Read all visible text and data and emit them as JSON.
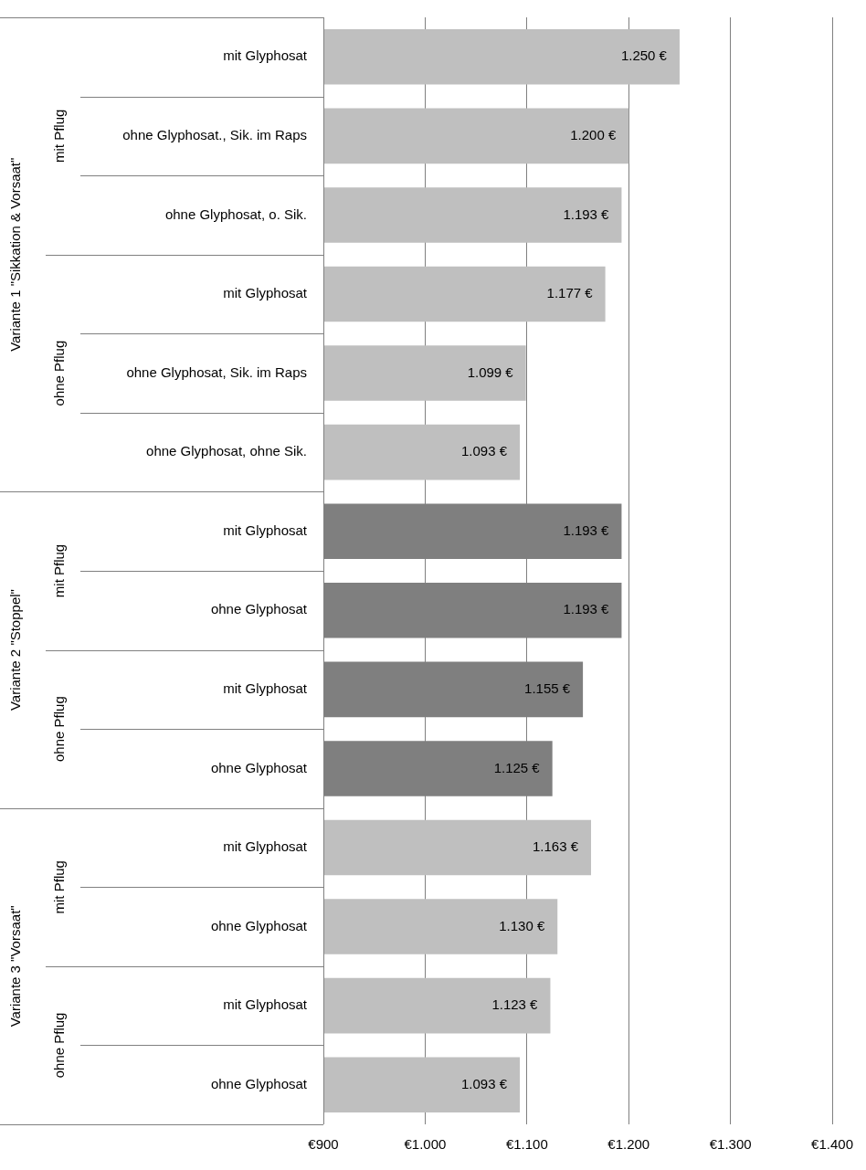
{
  "chart_data": {
    "type": "bar",
    "orientation": "horizontal",
    "categories": [
      "mit Glyphosat",
      "ohne Glyphosat., Sik. im Raps",
      "ohne Glyphosat, o. Sik.",
      "mit Glyphosat",
      "ohne Glyphosat, Sik. im Raps",
      "ohne Glyphosat, ohne Sik.",
      "mit Glyphosat",
      "ohne Glyphosat",
      "mit Glyphosat",
      "ohne Glyphosat",
      "mit Glyphosat",
      "ohne Glyphosat",
      "mit Glyphosat",
      "ohne Glyphosat"
    ],
    "values": [
      1250,
      1200,
      1193,
      1177,
      1099,
      1093,
      1193,
      1193,
      1155,
      1125,
      1163,
      1130,
      1123,
      1093
    ],
    "value_labels": [
      "1.250 €",
      "1.200 €",
      "1.193 €",
      "1.177 €",
      "1.099 €",
      "1.093 €",
      "1.193 €",
      "1.193 €",
      "1.155 €",
      "1.125 €",
      "1.163 €",
      "1.130 €",
      "1.123 €",
      "1.093 €"
    ],
    "colors": [
      "#bfbfbf",
      "#bfbfbf",
      "#bfbfbf",
      "#bfbfbf",
      "#bfbfbf",
      "#bfbfbf",
      "#7f7f7f",
      "#7f7f7f",
      "#7f7f7f",
      "#7f7f7f",
      "#bfbfbf",
      "#bfbfbf",
      "#bfbfbf",
      "#bfbfbf"
    ],
    "xlim": [
      900,
      1400
    ],
    "xticks": [
      {
        "value": 900,
        "label": "€900"
      },
      {
        "value": 1000,
        "label": "€1.000"
      },
      {
        "value": 1100,
        "label": "€1.100"
      },
      {
        "value": 1200,
        "label": "€1.200"
      },
      {
        "value": 1300,
        "label": "€1.300"
      },
      {
        "value": 1400,
        "label": "€1.400"
      }
    ],
    "grid": "x",
    "legend": false,
    "annotations": [
      "Variante 1 \"Sikkation & Vorsaat\"",
      "mit Pflug",
      "ohne Pflug",
      "Variante 2 \"Stoppel\"",
      "mit Pflug",
      "ohne Pflug",
      "Variante 3 \"Vorsaat\"",
      "mit Pflug",
      "ohne Pflug"
    ]
  }
}
